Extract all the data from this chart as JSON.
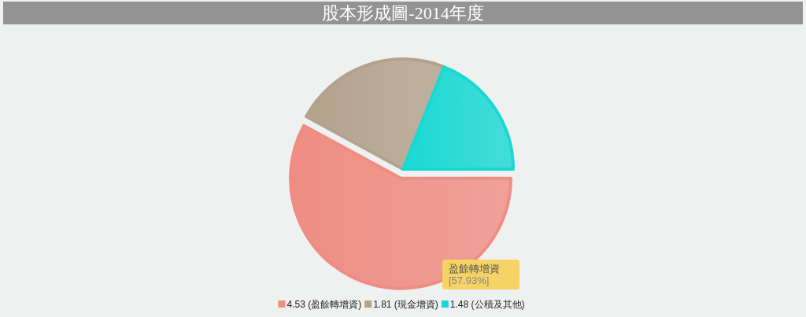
{
  "chart_data": {
    "type": "pie",
    "title": "股本形成圖-2014年度",
    "categories": [
      "4.53 (盈餘轉增資)",
      "1.81 (現金增資)",
      "1.48 (公積及其他)"
    ],
    "values": [
      4.53,
      1.81,
      1.48
    ],
    "colors": [
      "#ef8d83",
      "#b3a28c",
      "#1ad8d3"
    ],
    "legend": "bottom",
    "annotations": [
      {
        "text": "盈餘轉增資\n[57.93%]"
      }
    ]
  }
}
